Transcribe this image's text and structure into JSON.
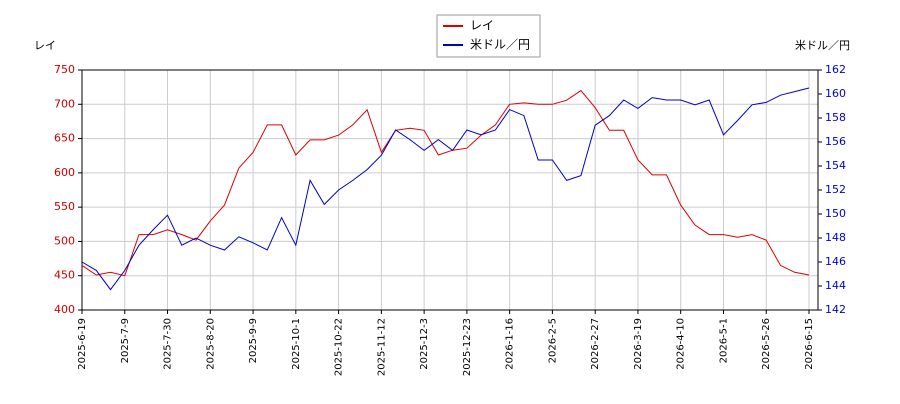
{
  "chart_data": {
    "type": "line",
    "y_label": "レイ",
    "y2_label": "米ドル／円",
    "categories": [
      "2025-6-19",
      null,
      null,
      "2025-7-9",
      null,
      null,
      "2025-7-30",
      null,
      null,
      "2025-8-20",
      null,
      null,
      "2025-9-9",
      null,
      null,
      "2025-10-1",
      null,
      null,
      "2025-10-22",
      null,
      null,
      "2025-11-12",
      null,
      null,
      "2025-12-3",
      null,
      null,
      "2025-12-23",
      null,
      null,
      "2026-1-16",
      null,
      null,
      "2026-2-5",
      null,
      null,
      "2026-2-27",
      null,
      null,
      "2026-3-19",
      null,
      null,
      "2026-4-10",
      null,
      null,
      "2026-5-1",
      null,
      null,
      "2026-5-26",
      null,
      null,
      "2026-6-15"
    ],
    "series": [
      {
        "name": "レイ",
        "color": "#dd0000",
        "axis": "y",
        "values": [
          465,
          451,
          455,
          450,
          510,
          510,
          517,
          510,
          502,
          530,
          553,
          607,
          630,
          670,
          670,
          626,
          648,
          648,
          655,
          670,
          692,
          630,
          662,
          665,
          662,
          626,
          633,
          636,
          655,
          670,
          700,
          702,
          700,
          700,
          706,
          720,
          695,
          662,
          662,
          619,
          597,
          597,
          553,
          524,
          510,
          510,
          506,
          510,
          502,
          465,
          455,
          451
        ]
      },
      {
        "name": "米ドル／円",
        "color": "#0000cc",
        "axis": "y2",
        "values": [
          146.0,
          145.3,
          143.7,
          145.3,
          147.4,
          148.7,
          149.9,
          147.4,
          148.0,
          147.4,
          147.0,
          148.1,
          147.6,
          147.0,
          149.7,
          147.4,
          152.8,
          150.8,
          152.0,
          152.8,
          153.7,
          154.9,
          157.0,
          156.2,
          155.3,
          156.2,
          155.3,
          157.0,
          156.6,
          157.0,
          158.7,
          158.2,
          154.5,
          154.5,
          152.8,
          153.2,
          157.4,
          158.2,
          159.5,
          158.8,
          159.7,
          159.5,
          159.5,
          159.1,
          159.5,
          156.6,
          157.8,
          159.1,
          159.3,
          159.9,
          160.2,
          160.5
        ]
      }
    ],
    "ylim": [
      400,
      750
    ],
    "yticks": [
      400,
      450,
      500,
      550,
      600,
      650,
      700,
      750
    ],
    "y2lim": [
      142,
      162
    ],
    "y2ticks": [
      142,
      144,
      146,
      148,
      150,
      152,
      154,
      156,
      158,
      160,
      162
    ],
    "grid": true
  }
}
